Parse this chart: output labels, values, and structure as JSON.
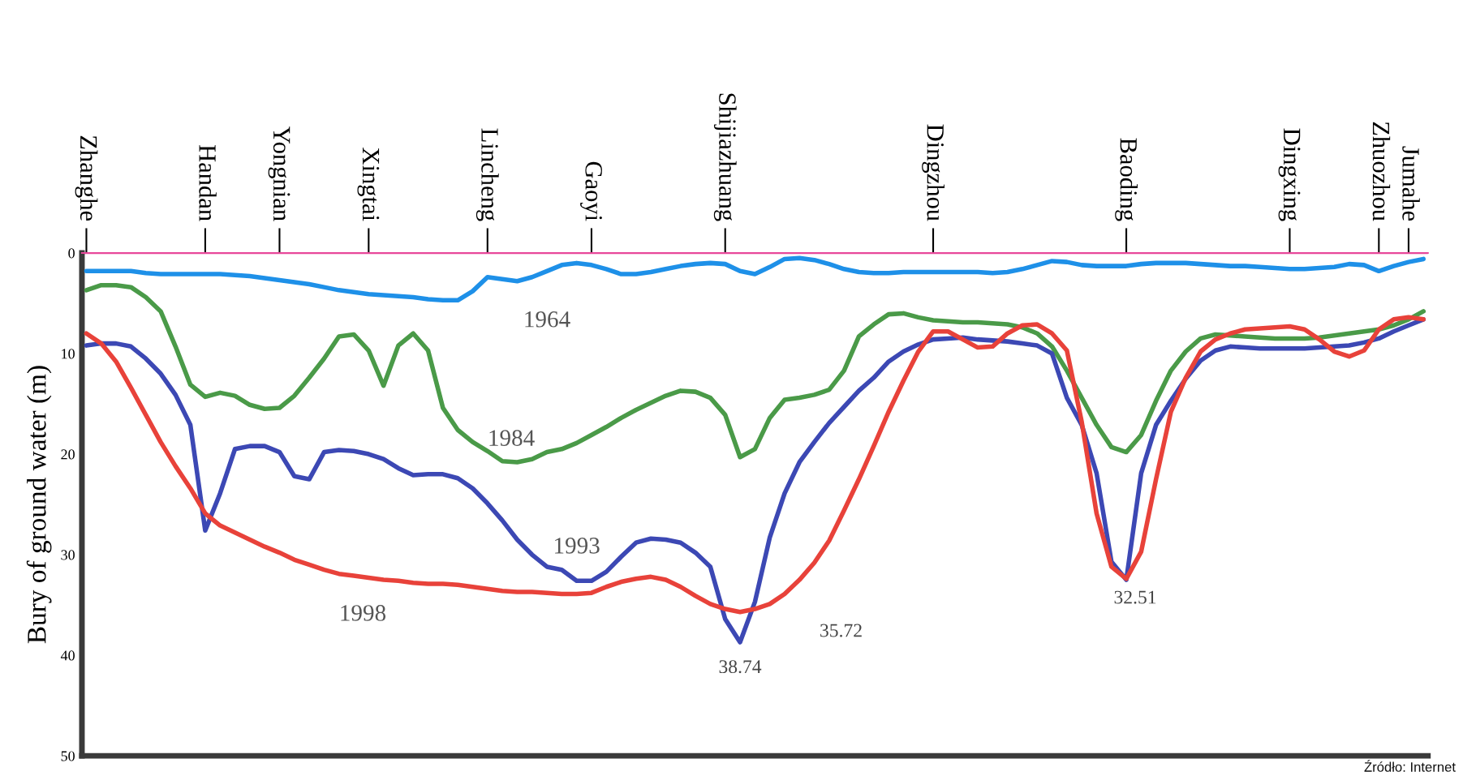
{
  "chart_data": {
    "type": "line",
    "categories": [
      "Zhanghe",
      null,
      null,
      null,
      null,
      null,
      null,
      null,
      "Handan",
      null,
      null,
      null,
      null,
      "Yongnian",
      null,
      null,
      null,
      null,
      null,
      "Xingtai",
      null,
      null,
      null,
      null,
      null,
      null,
      null,
      "Lincheng",
      null,
      null,
      null,
      null,
      null,
      null,
      "Gaoyi",
      null,
      null,
      null,
      null,
      null,
      null,
      null,
      null,
      "Shijiazhuang",
      null,
      null,
      null,
      null,
      null,
      null,
      null,
      null,
      null,
      null,
      null,
      null,
      null,
      "Dingzhou",
      null,
      null,
      null,
      null,
      null,
      null,
      null,
      null,
      null,
      null,
      null,
      null,
      "Baoding",
      null,
      null,
      null,
      null,
      null,
      null,
      null,
      null,
      null,
      null,
      "Dingxing",
      null,
      null,
      null,
      null,
      null,
      "Zhuozhou",
      null,
      "Jumahe",
      null
    ],
    "series": [
      {
        "name": "1964",
        "color": "#1e90e8",
        "values": [
          1.8,
          1.8,
          1.8,
          1.8,
          2.0,
          2.1,
          2.1,
          2.1,
          2.1,
          2.1,
          2.2,
          2.3,
          2.5,
          2.7,
          2.9,
          3.1,
          3.4,
          3.7,
          3.9,
          4.1,
          4.2,
          4.3,
          4.4,
          4.6,
          4.7,
          4.7,
          3.8,
          2.4,
          2.6,
          2.8,
          2.4,
          1.8,
          1.2,
          1.0,
          1.2,
          1.6,
          2.1,
          2.1,
          1.9,
          1.6,
          1.3,
          1.1,
          1.0,
          1.1,
          1.8,
          2.1,
          1.4,
          0.6,
          0.5,
          0.7,
          1.1,
          1.6,
          1.9,
          2.0,
          2.0,
          1.9,
          1.9,
          1.9,
          1.9,
          1.9,
          1.9,
          2.0,
          1.9,
          1.6,
          1.2,
          0.8,
          0.9,
          1.2,
          1.3,
          1.3,
          1.3,
          1.1,
          1.0,
          1.0,
          1.0,
          1.1,
          1.2,
          1.3,
          1.3,
          1.4,
          1.5,
          1.6,
          1.6,
          1.5,
          1.4,
          1.1,
          1.2,
          1.8,
          1.3,
          0.9,
          0.6
        ]
      },
      {
        "name": "1984",
        "color": "#4a9a48",
        "values": [
          3.7,
          3.2,
          3.2,
          3.4,
          4.4,
          5.8,
          9.3,
          13.1,
          14.3,
          13.9,
          14.2,
          15.1,
          15.5,
          15.4,
          14.2,
          12.4,
          10.5,
          8.3,
          8.1,
          9.7,
          13.2,
          9.2,
          8.0,
          9.7,
          15.4,
          17.6,
          18.8,
          19.7,
          20.7,
          20.8,
          20.5,
          19.8,
          19.5,
          18.9,
          18.1,
          17.3,
          16.4,
          15.6,
          14.9,
          14.2,
          13.7,
          13.8,
          14.4,
          16.1,
          20.3,
          19.5,
          16.4,
          14.6,
          14.4,
          14.1,
          13.6,
          11.7,
          8.3,
          7.1,
          6.1,
          6.0,
          6.4,
          6.7,
          6.8,
          6.9,
          6.9,
          7.0,
          7.1,
          7.4,
          8.0,
          9.3,
          11.7,
          14.4,
          17.1,
          19.3,
          19.8,
          18.1,
          14.7,
          11.7,
          9.8,
          8.5,
          8.1,
          8.2,
          8.3,
          8.4,
          8.5,
          8.5,
          8.5,
          8.4,
          8.2,
          8.0,
          7.8,
          7.6,
          7.2,
          6.6,
          5.8
        ]
      },
      {
        "name": "1993",
        "color": "#3c48b4",
        "values": [
          9.2,
          9.0,
          9.0,
          9.3,
          10.5,
          12.0,
          14.1,
          17.1,
          27.6,
          23.9,
          19.5,
          19.2,
          19.2,
          19.8,
          22.2,
          22.5,
          19.8,
          19.6,
          19.7,
          20.0,
          20.5,
          21.4,
          22.1,
          22.0,
          22.0,
          22.4,
          23.4,
          24.9,
          26.6,
          28.5,
          30.0,
          31.2,
          31.5,
          32.6,
          32.6,
          31.7,
          30.2,
          28.8,
          28.4,
          28.5,
          28.8,
          29.8,
          31.2,
          36.4,
          38.7,
          34.7,
          28.3,
          23.9,
          20.8,
          18.8,
          16.9,
          15.3,
          13.7,
          12.4,
          10.8,
          9.8,
          9.1,
          8.6,
          8.5,
          8.4,
          8.6,
          8.7,
          8.8,
          9.0,
          9.2,
          10.0,
          14.4,
          17.1,
          21.9,
          30.7,
          32.5,
          21.9,
          17.1,
          14.7,
          12.5,
          10.7,
          9.7,
          9.3,
          9.4,
          9.5,
          9.5,
          9.5,
          9.5,
          9.4,
          9.3,
          9.2,
          8.9,
          8.5,
          7.8,
          7.2,
          6.6
        ]
      },
      {
        "name": "1998",
        "color": "#e8423a",
        "values": [
          8.0,
          9.0,
          10.8,
          13.4,
          16.1,
          18.8,
          21.2,
          23.4,
          25.9,
          27.1,
          27.8,
          28.5,
          29.2,
          29.8,
          30.5,
          31.0,
          31.5,
          31.9,
          32.1,
          32.3,
          32.5,
          32.6,
          32.8,
          32.9,
          32.9,
          33.0,
          33.2,
          33.4,
          33.6,
          33.7,
          33.7,
          33.8,
          33.9,
          33.9,
          33.8,
          33.2,
          32.7,
          32.4,
          32.2,
          32.5,
          33.2,
          34.1,
          34.9,
          35.4,
          35.7,
          35.4,
          34.9,
          33.9,
          32.5,
          30.8,
          28.6,
          25.6,
          22.5,
          19.2,
          15.8,
          12.7,
          9.8,
          7.8,
          7.8,
          8.6,
          9.4,
          9.3,
          8.0,
          7.2,
          7.1,
          8.0,
          9.7,
          16.8,
          25.9,
          31.2,
          32.4,
          29.7,
          22.5,
          15.8,
          12.4,
          9.8,
          8.6,
          8.0,
          7.6,
          7.5,
          7.4,
          7.3,
          7.6,
          8.6,
          9.8,
          10.3,
          9.7,
          7.6,
          6.6,
          6.4,
          6.6
        ]
      }
    ],
    "ylabel": "Bury of ground water (m)",
    "ylim": [
      50,
      0
    ],
    "yticks": [
      0,
      10,
      20,
      30,
      40,
      50
    ],
    "ref_lines": [
      {
        "axis": "y",
        "value": 0,
        "color": "#e8489a"
      }
    ],
    "annotations": [
      "38.74",
      "35.72",
      "32.51",
      "Źródło: Internet"
    ]
  }
}
